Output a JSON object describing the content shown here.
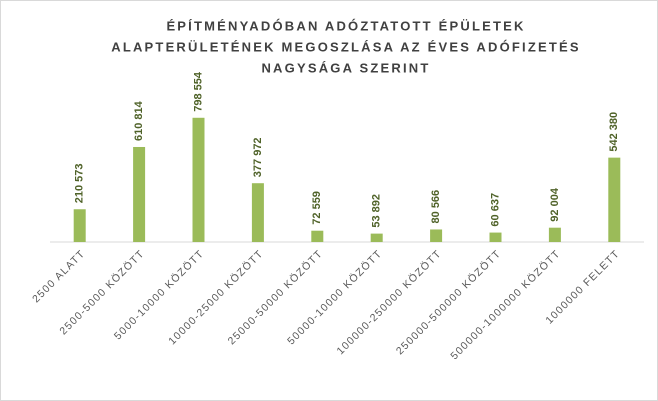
{
  "chart_data": {
    "type": "bar",
    "title": [
      "ÉPÍTMÉNYADÓBAN ADÓZTATOTT ÉPÜLETEK",
      "ALAPTERÜLETÉNEK MEGOSZLÁSA AZ ÉVES ADÓFIZETÉS",
      "NAGYSÁGA SZERINT"
    ],
    "categories": [
      "2500 ALATT",
      "2500-5000 KÖZÖTT",
      "5000-10000 KÖZÖTT",
      "10000-25000 KÖZÖTT",
      "25000-50000 KÖZÖTT",
      "50000-10000 KÖZÖTT",
      "100000-250000 KÖZÖTT",
      "250000-500000 KÖZÖTT",
      "500000-1000000 KÖZÖTT",
      "1000000 FELETT"
    ],
    "values": [
      210573,
      610814,
      798554,
      377972,
      72559,
      53892,
      80566,
      60637,
      92004,
      542380
    ],
    "value_labels": [
      "210 573",
      "610 814",
      "798 554",
      "377 972",
      "72 559",
      "53 892",
      "80 566",
      "60 637",
      "92 004",
      "542 380"
    ],
    "color": "#9bbb59",
    "ylim": [
      0,
      900000
    ]
  }
}
